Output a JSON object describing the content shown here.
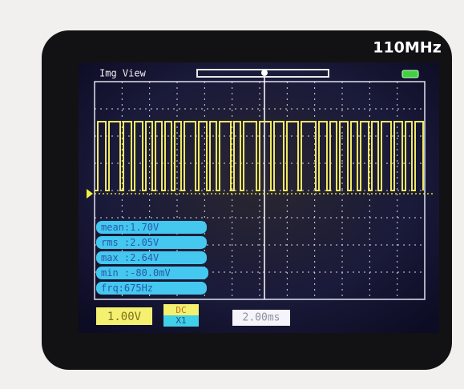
{
  "header": {
    "brand": "110MHz"
  },
  "screen": {
    "mode": "Img View",
    "measurements": [
      "mean:1.70V",
      "rms :2.05V",
      "max :2.64V",
      "min :-80.0mV",
      "frq:675Hz"
    ],
    "voltage_scale": "1.00V",
    "coupling": "DC",
    "probe": "X1",
    "time_scale": "2.00ms"
  }
}
